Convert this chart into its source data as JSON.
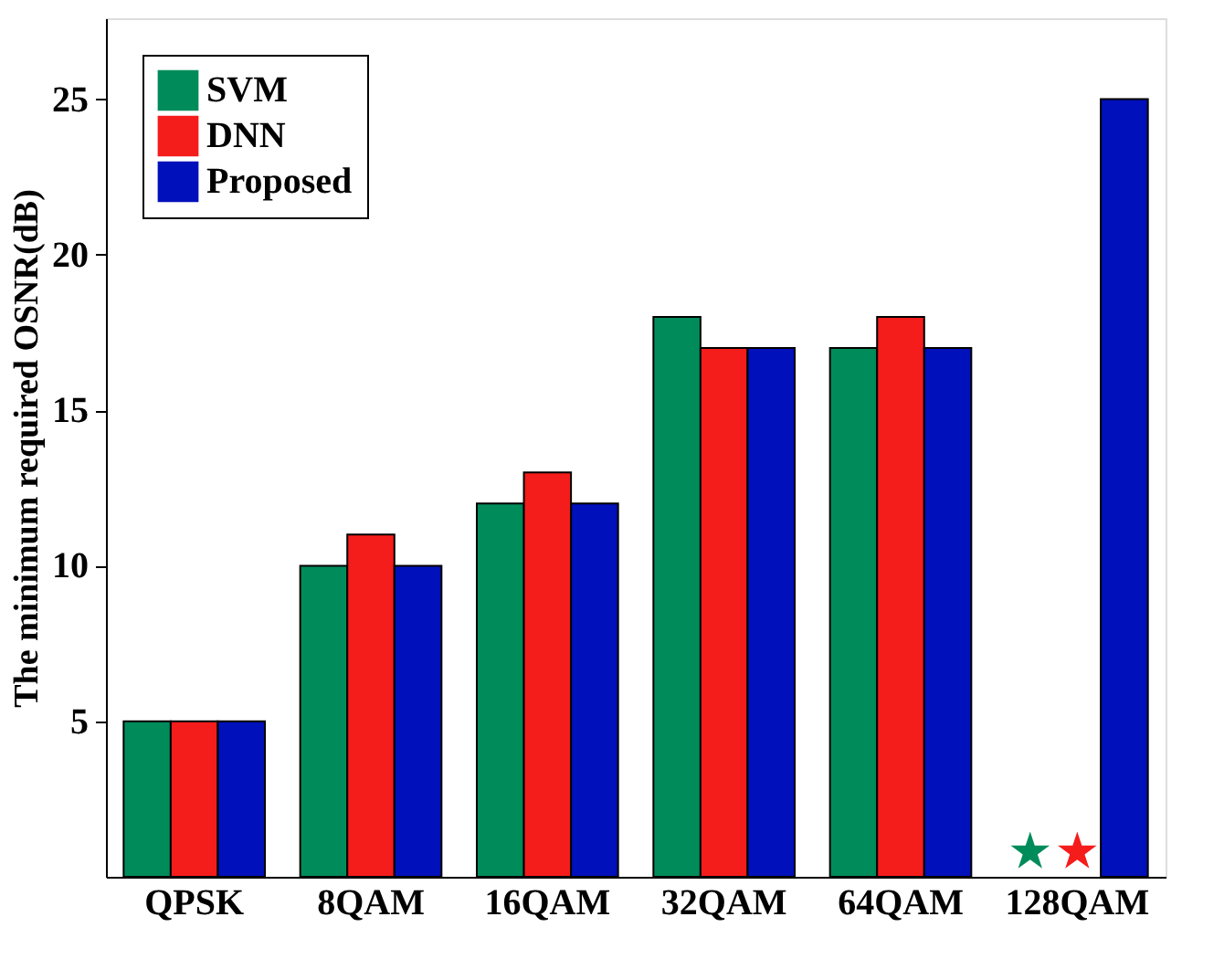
{
  "chart_data": {
    "type": "bar",
    "ylabel": "The minimum required OSNR(dB)",
    "categories": [
      "QPSK",
      "8QAM",
      "16QAM",
      "32QAM",
      "64QAM",
      "128QAM"
    ],
    "series": [
      {
        "name": "SVM",
        "color": "#008c5a",
        "values": [
          5,
          10,
          12,
          18,
          17,
          null
        ]
      },
      {
        "name": "DNN",
        "color": "#f51c1c",
        "values": [
          5,
          11,
          13,
          17,
          18,
          null
        ]
      },
      {
        "name": "Proposed",
        "color": "#0010bb",
        "values": [
          5,
          10,
          12,
          17,
          17,
          25
        ]
      },
      {
        "type": "scatter",
        "marker": "star",
        "color": "#008c5a",
        "values": [
          null,
          null,
          null,
          null,
          null,
          0.8
        ]
      },
      {
        "type": "scatter",
        "marker": "star",
        "color": "#f51c1c",
        "values": [
          null,
          null,
          null,
          null,
          null,
          0.8
        ]
      }
    ],
    "ylim": [
      0,
      27.6
    ],
    "yticks": [
      5,
      10,
      15,
      20,
      25
    ],
    "grid": false,
    "legend": "top left"
  }
}
